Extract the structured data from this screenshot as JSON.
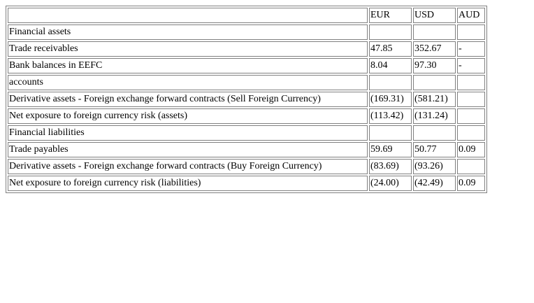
{
  "table": {
    "headers": [
      "",
      "EUR",
      "USD",
      "AUD"
    ],
    "rows": [
      [
        "Financial assets",
        "",
        "",
        ""
      ],
      [
        "Trade receivables",
        "47.85",
        "352.67",
        "-"
      ],
      [
        "Bank balances in EEFC",
        "8.04",
        "97.30",
        "-"
      ],
      [
        "accounts",
        "",
        "",
        ""
      ],
      [
        "Derivative assets - Foreign exchange forward contracts (Sell Foreign Currency)",
        "(169.31)",
        "(581.21)",
        ""
      ],
      [
        "Net exposure to foreign currency risk (assets)",
        "(113.42)",
        "(131.24)",
        ""
      ],
      [
        "Financial liabilities",
        "",
        "",
        ""
      ],
      [
        "Trade payables",
        "59.69",
        "50.77",
        "0.09"
      ],
      [
        "Derivative assets - Foreign exchange forward contracts (Buy Foreign Currency)",
        "(83.69)",
        "(93.26)",
        ""
      ],
      [
        "Net exposure to foreign currency risk (liabilities)",
        "(24.00)",
        "(42.49)",
        "0.09"
      ]
    ]
  }
}
